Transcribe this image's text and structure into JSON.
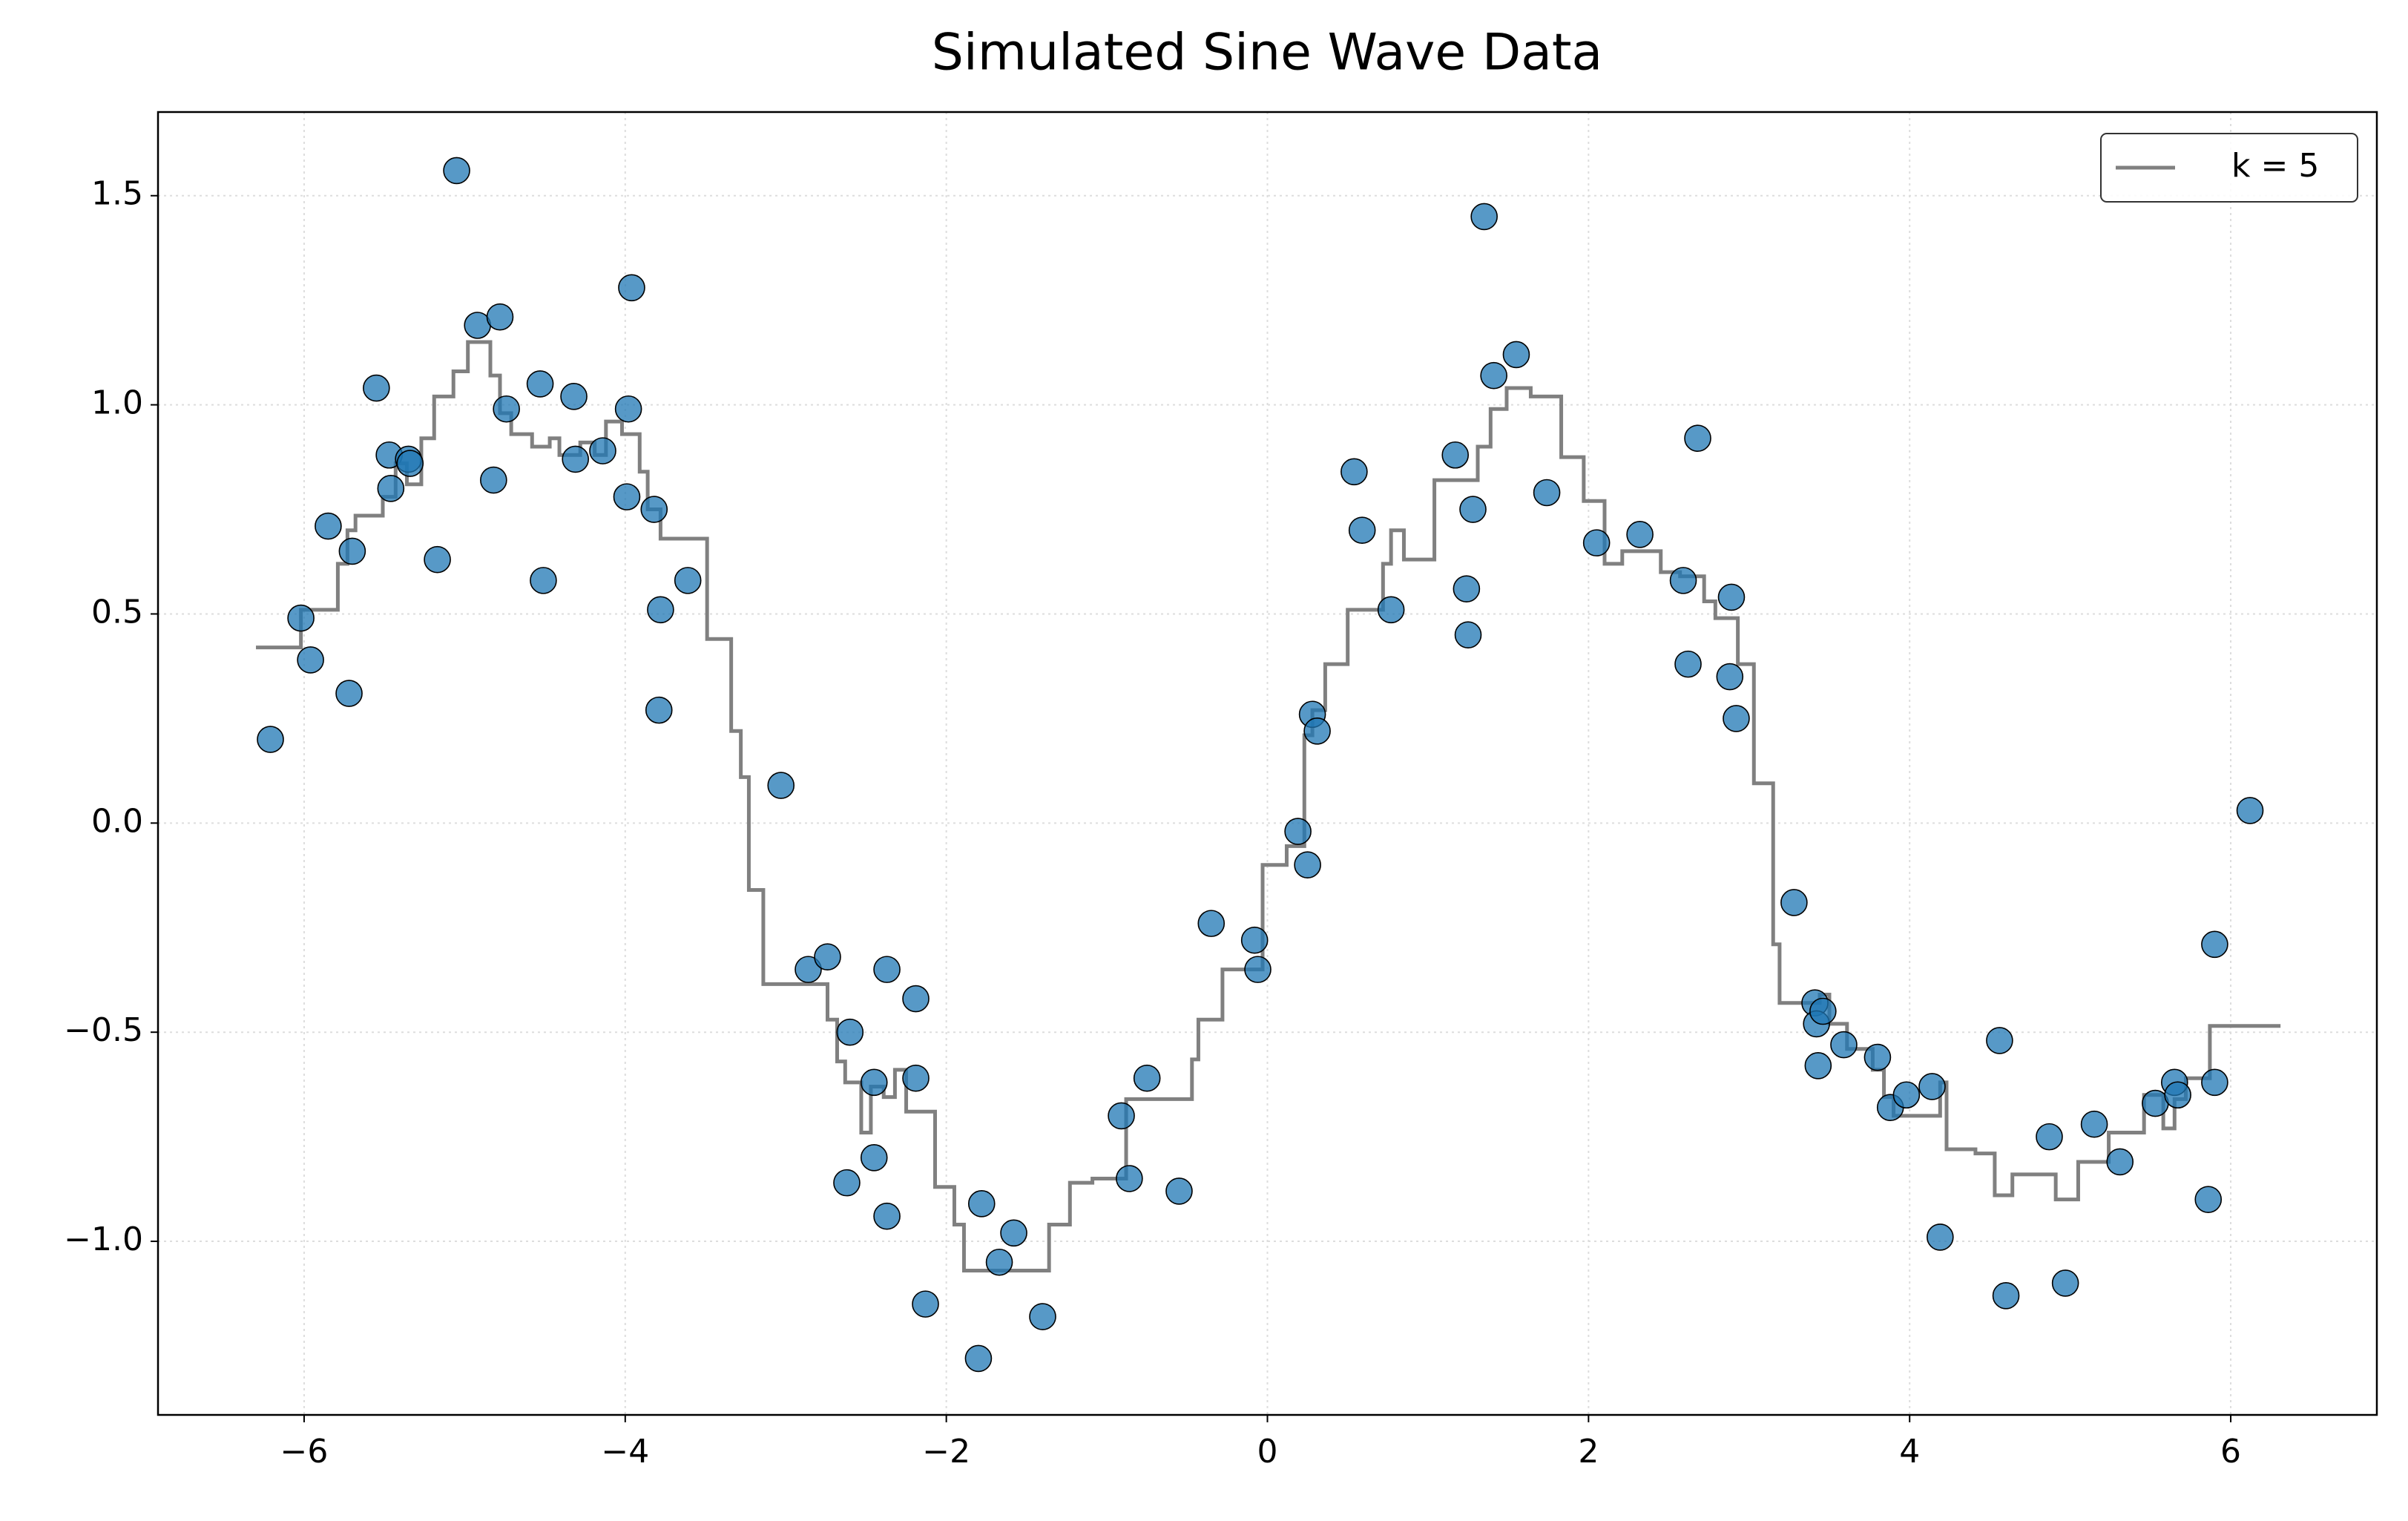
{
  "chart_data": {
    "type": "scatter",
    "title": "Simulated Sine Wave Data",
    "xlim": [
      -6.91,
      6.91
    ],
    "ylim": [
      -1.415,
      1.7
    ],
    "xticks": [
      {
        "value": -6,
        "label": "−6"
      },
      {
        "value": -4,
        "label": "−4"
      },
      {
        "value": -2,
        "label": "−2"
      },
      0,
      2,
      4,
      6
    ],
    "yticks": [
      {
        "value": -1.0,
        "label": "−1.0"
      },
      {
        "value": -0.5,
        "label": "−0.5"
      },
      {
        "value": 0.0,
        "label": "0.0"
      },
      0.5,
      {
        "value": 1.0,
        "label": "1.0"
      },
      1.5
    ],
    "grid": true,
    "legend": "upper right",
    "series": [
      {
        "type": "scatter",
        "color": "#1f77b4",
        "x": [
          -6.21,
          -6.02,
          -5.96,
          -5.85,
          -5.72,
          -5.7,
          -5.55,
          -5.47,
          -5.46,
          -5.35,
          -5.34,
          -5.17,
          -5.05,
          -4.92,
          -4.82,
          -4.78,
          -4.74,
          -4.53,
          -4.51,
          -4.32,
          -4.31,
          -4.14,
          -3.96,
          -3.98,
          -3.99,
          -3.82,
          -3.78,
          -3.79,
          -3.61,
          -3.03,
          -2.86,
          -2.74,
          -2.6,
          -2.62,
          -2.37,
          -2.45,
          -2.45,
          -2.37,
          -2.19,
          -2.19,
          -2.13,
          -1.8,
          -1.78,
          -1.67,
          -1.58,
          -1.4,
          -0.91,
          -0.86,
          -0.75,
          -0.55,
          -0.35,
          -0.08,
          -0.06,
          0.19,
          0.25,
          0.28,
          0.31,
          0.54,
          0.59,
          0.77,
          1.17,
          1.24,
          1.25,
          1.28,
          1.35,
          1.41,
          1.55,
          1.74,
          2.05,
          2.32,
          2.59,
          2.62,
          2.68,
          2.88,
          2.89,
          2.92,
          3.28,
          3.41,
          3.42,
          3.46,
          3.43,
          3.59,
          3.8,
          3.88,
          3.98,
          4.14,
          4.19,
          4.56,
          4.6,
          4.87,
          4.97,
          5.15,
          5.31,
          5.53,
          5.65,
          5.67,
          5.86,
          5.9,
          5.9,
          6.12
        ],
        "values": [
          0.2,
          0.49,
          0.39,
          0.71,
          0.31,
          0.65,
          1.04,
          0.88,
          0.8,
          0.87,
          0.86,
          0.63,
          1.56,
          1.19,
          0.82,
          1.21,
          0.99,
          1.05,
          0.58,
          1.02,
          0.87,
          0.89,
          1.28,
          0.99,
          0.78,
          0.75,
          0.51,
          0.27,
          0.58,
          0.09,
          -0.35,
          -0.32,
          -0.5,
          -0.86,
          -0.35,
          -0.62,
          -0.8,
          -0.94,
          -0.42,
          -0.61,
          -1.15,
          -1.28,
          -0.91,
          -1.05,
          -0.98,
          -1.18,
          -0.7,
          -0.85,
          -0.61,
          -0.88,
          -0.24,
          -0.28,
          -0.35,
          -0.02,
          -0.1,
          0.26,
          0.22,
          0.84,
          0.7,
          0.51,
          0.88,
          0.56,
          0.45,
          0.75,
          1.45,
          1.07,
          1.12,
          0.79,
          0.67,
          0.69,
          0.58,
          0.38,
          0.92,
          0.35,
          0.54,
          0.25,
          -0.19,
          -0.43,
          -0.48,
          -0.45,
          -0.58,
          -0.53,
          -0.56,
          -0.68,
          -0.65,
          -0.63,
          -0.99,
          -0.52,
          -1.13,
          -0.75,
          -1.1,
          -0.72,
          -0.81,
          -0.67,
          -0.62,
          -0.65,
          -0.9,
          -0.29,
          -0.62,
          0.03
        ]
      },
      {
        "type": "step",
        "name": "k = 5",
        "color": "#808080",
        "x": [
          -6.3,
          -6.02,
          -5.79,
          -5.73,
          -5.68,
          -5.51,
          -5.43,
          -5.36,
          -5.27,
          -5.19,
          -5.07,
          -4.98,
          -4.84,
          -4.78,
          -4.71,
          -4.58,
          -4.47,
          -4.41,
          -4.28,
          -4.19,
          -4.12,
          -4.02,
          -3.91,
          -3.86,
          -3.78,
          -3.49,
          -3.34,
          -3.28,
          -3.23,
          -3.14,
          -2.74,
          -2.68,
          -2.63,
          -2.53,
          -2.47,
          -2.39,
          -2.32,
          -2.25,
          -2.07,
          -1.95,
          -1.89,
          -1.36,
          -1.23,
          -1.09,
          -0.88,
          -0.47,
          -0.43,
          -0.28,
          -0.03,
          0.12,
          0.23,
          0.28,
          0.36,
          0.5,
          0.72,
          0.77,
          0.85,
          1.04,
          1.31,
          1.39,
          1.49,
          1.64,
          1.83,
          1.97,
          2.1,
          2.21,
          2.45,
          2.57,
          2.72,
          2.79,
          2.93,
          3.03,
          3.15,
          3.19,
          3.44,
          3.5,
          3.61,
          3.77,
          3.84,
          3.9,
          4.19,
          4.23,
          4.41,
          4.53,
          4.64,
          4.91,
          5.05,
          5.24,
          5.46,
          5.58,
          5.65,
          5.72,
          5.87,
          6.31
        ],
        "values": [
          0.42,
          0.51,
          0.62,
          0.7,
          0.735,
          0.78,
          0.86,
          0.81,
          0.92,
          1.02,
          1.08,
          1.15,
          1.07,
          0.98,
          0.93,
          0.9,
          0.92,
          0.88,
          0.91,
          0.88,
          0.96,
          0.93,
          0.84,
          0.75,
          0.68,
          0.44,
          0.22,
          0.11,
          -0.16,
          -0.385,
          -0.47,
          -0.57,
          -0.62,
          -0.74,
          -0.63,
          -0.655,
          -0.59,
          -0.69,
          -0.87,
          -0.96,
          -1.07,
          -0.96,
          -0.86,
          -0.85,
          -0.66,
          -0.565,
          -0.47,
          -0.35,
          -0.1,
          -0.055,
          0.21,
          0.27,
          0.38,
          0.51,
          0.62,
          0.7,
          0.63,
          0.82,
          0.9,
          0.99,
          1.04,
          1.02,
          0.875,
          0.77,
          0.62,
          0.65,
          0.6,
          0.59,
          0.53,
          0.49,
          0.38,
          0.095,
          -0.29,
          -0.43,
          -0.41,
          -0.48,
          -0.54,
          -0.59,
          -0.655,
          -0.7,
          -0.62,
          -0.78,
          -0.79,
          -0.89,
          -0.84,
          -0.9,
          -0.81,
          -0.74,
          -0.65,
          -0.73,
          -0.66,
          -0.61,
          -0.485,
          -0.485
        ]
      }
    ]
  }
}
